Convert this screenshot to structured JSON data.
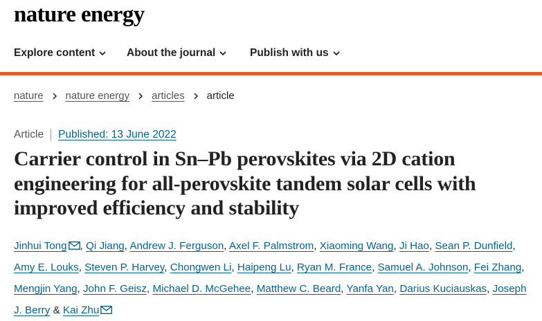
{
  "header": {
    "logo": "nature energy"
  },
  "nav": {
    "items": [
      {
        "label": "Explore content"
      },
      {
        "label": "About the journal"
      },
      {
        "label": "Publish with us"
      }
    ]
  },
  "breadcrumb": {
    "items": [
      "nature",
      "nature energy",
      "articles"
    ],
    "current": "article"
  },
  "article": {
    "type": "Article",
    "published": "Published: 13 June 2022",
    "title": "Carrier control in Sn–Pb perovskites via 2D cation engineering for all-perovskite tandem solar cells with improved efficiency and stability",
    "authors": [
      "Jinhui Tong",
      "Qi Jiang",
      "Andrew J. Ferguson",
      "Axel F. Palmstrom",
      "Xiaoming Wang",
      "Ji Hao",
      "Sean P. Dunfield",
      "Amy E. Louks",
      "Steven P. Harvey",
      "Chongwen Li",
      "Haipeng Lu",
      "Ryan M. France",
      "Samuel A. Johnson",
      "Fei Zhang",
      "Mengjin Yang",
      "John F. Geisz",
      "Michael D. McGehee",
      "Matthew C. Beard",
      "Yanfa Yan",
      "Darius Kuciauskas",
      "Joseph J. Berry",
      "Kai Zhu"
    ],
    "separator": ",",
    "last_separator": "&",
    "corresponding_icon": "envelope-icon"
  },
  "colors": {
    "accent": "#e75d26",
    "link": "#006699",
    "text": "#222222"
  }
}
